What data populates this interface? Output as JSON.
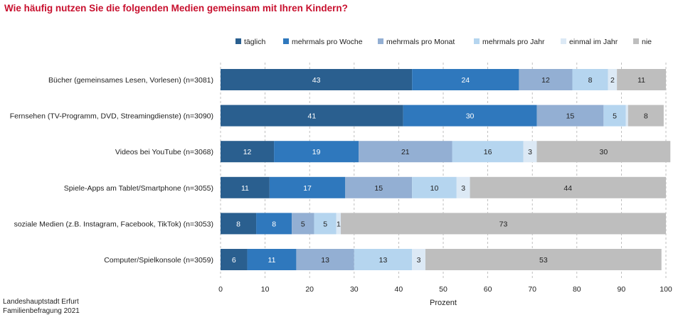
{
  "title": "Wie häufig nutzen Sie die folgenden Medien gemeinsam mit Ihren Kindern?",
  "source": {
    "line1": "Landeshauptstadt Erfurt",
    "line2": "Familienbefragung 2021"
  },
  "colors": {
    "title": "#c8102e",
    "grid": "#b0b0b0"
  },
  "chart_data": {
    "type": "bar",
    "orientation": "horizontal",
    "stacked": true,
    "title": "Wie häufig nutzen Sie die folgenden Medien gemeinsam mit Ihren Kindern?",
    "xlabel": "Prozent",
    "ylabel": "",
    "xlim": [
      0,
      100
    ],
    "xticks": [
      0,
      10,
      20,
      30,
      40,
      50,
      60,
      70,
      80,
      90,
      100
    ],
    "grid": "vertical dashed",
    "legend_position": "top-right",
    "categories": [
      "Bücher (gemeinsames Lesen, Vorlesen) (n=3081)",
      "Fernsehen (TV-Programm, DVD, Streamingdienste) (n=3090)",
      "Videos bei YouTube (n=3068)",
      "Spiele-Apps am Tablet/Smartphone (n=3055)",
      "soziale Medien (z.B. Instagram, Facebook, TikTok) (n=3053)",
      "Computer/Spielkonsole (n=3059)"
    ],
    "series": [
      {
        "name": "täglich",
        "color": "#2a5f8f",
        "labelColor": "#ffffff",
        "values": [
          43,
          41,
          12,
          11,
          8,
          6
        ],
        "labels": [
          "43",
          "41",
          "12",
          "11",
          "8",
          "6"
        ]
      },
      {
        "name": "mehrmals pro Woche",
        "color": "#2f78bd",
        "labelColor": "#ffffff",
        "values": [
          24,
          30,
          19,
          17,
          8,
          11
        ],
        "labels": [
          "24",
          "30",
          "19",
          "17",
          "8",
          "11"
        ]
      },
      {
        "name": "mehrmals pro Monat",
        "color": "#93afd3",
        "labelColor": "#222222",
        "values": [
          12,
          15,
          21,
          15,
          5,
          13
        ],
        "labels": [
          "12",
          "15",
          "21",
          "15",
          "5",
          "13"
        ]
      },
      {
        "name": "mehrmals pro Jahr",
        "color": "#b5d5ef",
        "labelColor": "#222222",
        "values": [
          8,
          5,
          16,
          10,
          5,
          13
        ],
        "labels": [
          "8",
          "5",
          "16",
          "10",
          "5",
          "13"
        ]
      },
      {
        "name": "einmal im Jahr",
        "color": "#dce9f5",
        "labelColor": "#222222",
        "values": [
          2,
          0.5,
          3,
          3,
          1,
          3
        ],
        "labels": [
          "2",
          "",
          "3",
          "3",
          "1",
          "3"
        ]
      },
      {
        "name": "nie",
        "color": "#bebebe",
        "labelColor": "#222222",
        "values": [
          11,
          8,
          30,
          44,
          73,
          53
        ],
        "labels": [
          "11",
          "8",
          "30",
          "44",
          "73",
          "53"
        ]
      }
    ]
  }
}
